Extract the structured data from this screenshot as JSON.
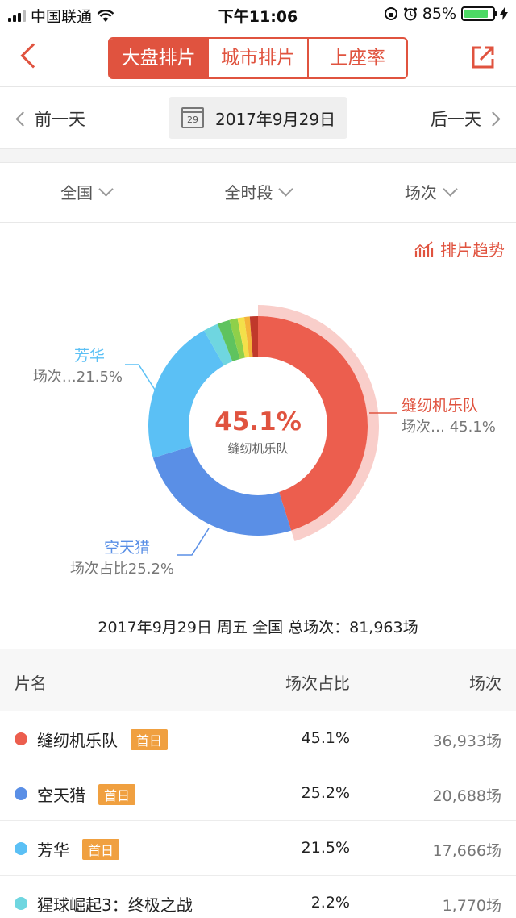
{
  "status_bar": {
    "carrier": "中国联通",
    "time": "下午11:06",
    "battery": "85%",
    "battery_level": 0.85
  },
  "nav": {
    "tabs": [
      {
        "label": "大盘排片",
        "active": true
      },
      {
        "label": "城市排片",
        "active": false
      },
      {
        "label": "上座率",
        "active": false
      }
    ]
  },
  "date_bar": {
    "prev_label": "前一天",
    "next_label": "后一天",
    "calendar_day": "29",
    "date": "2017年9月29日"
  },
  "filters": [
    {
      "label": "全国"
    },
    {
      "label": "全时段"
    },
    {
      "label": "场次"
    }
  ],
  "trend_link": "排片趋势",
  "chart_data": {
    "type": "pie",
    "donut": true,
    "center_value": "45.1%",
    "center_label": "缝纫机乐队",
    "slices": [
      {
        "name": "缝纫机乐队",
        "value": 45.1,
        "color": "#ec5e4e",
        "highlighted": true
      },
      {
        "name": "空天猎",
        "value": 25.2,
        "color": "#5a8fe6"
      },
      {
        "name": "芳华",
        "value": 21.5,
        "color": "#5bc0f5"
      },
      {
        "name": "猩球崛起3：终极之战",
        "value": 2.2,
        "color": "#6fd6e0"
      },
      {
        "name": "",
        "value": 1.8,
        "color": "#5fc35f"
      },
      {
        "name": "",
        "value": 1.2,
        "color": "#8fd04a"
      },
      {
        "name": "",
        "value": 1.0,
        "color": "#f3e04a"
      },
      {
        "name": "",
        "value": 0.8,
        "color": "#f5b43a"
      },
      {
        "name": "",
        "value": 1.2,
        "color": "#c0392b"
      }
    ],
    "labels": [
      {
        "name": "缝纫机乐队",
        "value_text": "场次… 45.1%",
        "color": "#e0533f"
      },
      {
        "name": "空天猎",
        "value_text": "场次占比25.2%",
        "color": "#5a8fe6"
      },
      {
        "name": "芳华",
        "value_text": "场次…21.5%",
        "color": "#5bc0f5"
      }
    ]
  },
  "summary": "2017年9月29日 周五 全国 总场次：81,963场",
  "table": {
    "headers": {
      "name": "片名",
      "share": "场次占比",
      "count": "场次"
    },
    "rows": [
      {
        "color": "#ec5e4e",
        "name": "缝纫机乐队",
        "badge": "首日",
        "share": "45.1%",
        "count": "36,933场"
      },
      {
        "color": "#5a8fe6",
        "name": "空天猎",
        "badge": "首日",
        "share": "25.2%",
        "count": "20,688场"
      },
      {
        "color": "#5bc0f5",
        "name": "芳华",
        "badge": "首日",
        "share": "21.5%",
        "count": "17,666场"
      },
      {
        "color": "#6fd6e0",
        "name": "猩球崛起3：终极之战",
        "badge": "",
        "share": "2.2%",
        "count": "1,770场"
      }
    ]
  }
}
